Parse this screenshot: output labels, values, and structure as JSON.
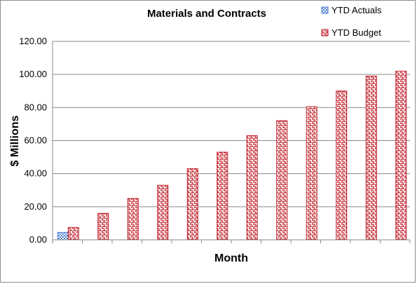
{
  "chart_data": {
    "type": "bar",
    "title": "Materials and Contracts",
    "xlabel": "Month",
    "ylabel": "$ Millions",
    "ylim": [
      0,
      120
    ],
    "yticks": [
      "0.00",
      "20.00",
      "40.00",
      "60.00",
      "80.00",
      "100.00",
      "120.00"
    ],
    "grid": true,
    "legend_position": "top-right",
    "categories": [
      "",
      "",
      "",
      "",
      "",
      "",
      "",
      "",
      "",
      "",
      "",
      ""
    ],
    "series": [
      {
        "name": "YTD Actuals",
        "color": "#4a7fd0",
        "pattern": "checker",
        "values": [
          4.5,
          null,
          null,
          null,
          null,
          null,
          null,
          null,
          null,
          null,
          null,
          null
        ]
      },
      {
        "name": "YTD Budget",
        "color": "#c0202a",
        "pattern": "maze",
        "values": [
          7.5,
          16,
          25,
          33,
          43,
          53,
          63,
          72,
          80.5,
          90,
          99,
          102
        ]
      }
    ]
  }
}
